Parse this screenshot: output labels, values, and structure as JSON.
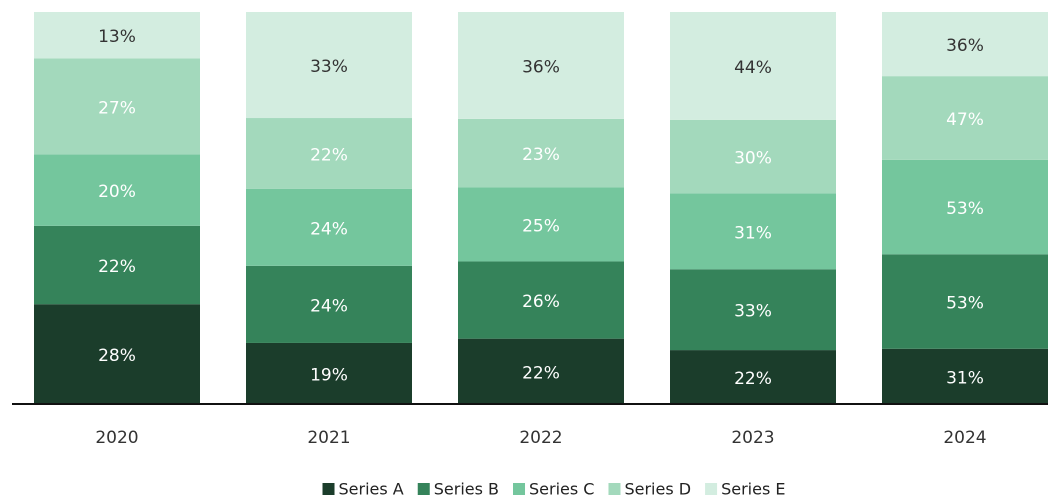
{
  "chart_data": {
    "type": "bar",
    "stacked": "percent",
    "categories": [
      "2020",
      "2021",
      "2022",
      "2023",
      "2024"
    ],
    "series": [
      {
        "name": "Series A",
        "color": "#1b3d2b",
        "label_color": "#ffffff",
        "values": [
          28,
          19,
          22,
          22,
          31
        ]
      },
      {
        "name": "Series B",
        "color": "#35835a",
        "label_color": "#ffffff",
        "values": [
          22,
          24,
          26,
          33,
          53
        ]
      },
      {
        "name": "Series C",
        "color": "#74c69d",
        "label_color": "#ffffff",
        "values": [
          20,
          24,
          25,
          31,
          53
        ]
      },
      {
        "name": "Series D",
        "color": "#a3d9bc",
        "label_color": "#ffffff",
        "values": [
          27,
          22,
          23,
          30,
          47
        ]
      },
      {
        "name": "Series E",
        "color": "#d3ede0",
        "label_color": "#333333",
        "values": [
          13,
          33,
          36,
          44,
          36
        ]
      }
    ],
    "value_labels": [
      [
        "28%",
        "19%",
        "22%",
        "22%",
        "31%"
      ],
      [
        "22%",
        "24%",
        "26%",
        "33%",
        "53%"
      ],
      [
        "20%",
        "24%",
        "25%",
        "31%",
        "53%"
      ],
      [
        "27%",
        "22%",
        "23%",
        "30%",
        "47%"
      ],
      [
        "13%",
        "33%",
        "36%",
        "44%",
        "36%"
      ]
    ],
    "legend": "bottom"
  }
}
